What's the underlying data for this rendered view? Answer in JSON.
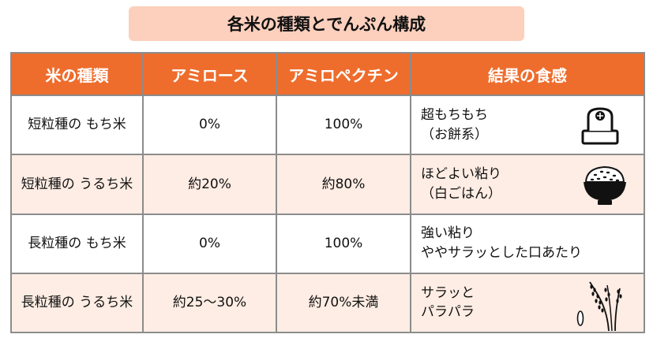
{
  "title": "各米の種類とでんぷん構成",
  "table": {
    "headers": [
      "米の種類",
      "アミロース",
      "アミロペクチン",
      "結果の食感"
    ],
    "rows": [
      {
        "type": [
          "短粒種の",
          "もち米"
        ],
        "amylose": "0%",
        "amylopectin": "100%",
        "result": [
          "超もちもち",
          "（お餅系）"
        ],
        "icon": "mochi-icon"
      },
      {
        "type": [
          "短粒種の",
          "うるち米"
        ],
        "amylose": "約20%",
        "amylopectin": "約80%",
        "result": [
          "ほどよい粘り",
          "（白ごはん）"
        ],
        "icon": "rice-bowl-icon"
      },
      {
        "type": [
          "長粒種の",
          "もち米"
        ],
        "amylose": "0%",
        "amylopectin": "100%",
        "result": [
          "強い粘り",
          "ややサラッとした口あたり"
        ],
        "icon": ""
      },
      {
        "type": [
          "長粒種の",
          "うるち米"
        ],
        "amylose": "約25～30%",
        "amylopectin": "約70%未満",
        "result": [
          "サラッと",
          "パラパラ"
        ],
        "icon": "rice-ear-icon"
      }
    ]
  },
  "colors": {
    "title_bg": "#fcd0bd",
    "header_bg": "#ee6d2d",
    "row_alt_bg": "#feede4",
    "border": "#8c8c8c"
  }
}
